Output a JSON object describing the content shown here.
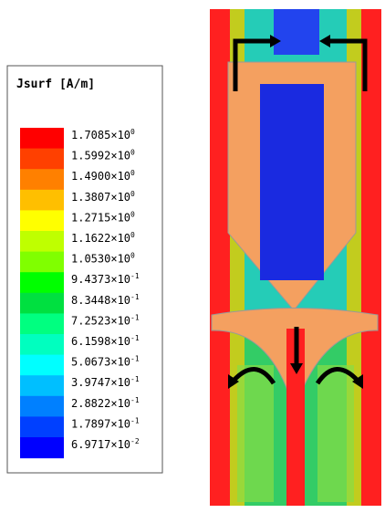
{
  "legend": {
    "title": "Jsurf [A/m]",
    "items": [
      {
        "mantissa": "1.7085×10",
        "exponent": "0",
        "color": "#ff0000"
      },
      {
        "mantissa": "1.5992×10",
        "exponent": "0",
        "color": "#ff4000"
      },
      {
        "mantissa": "1.4900×10",
        "exponent": "0",
        "color": "#ff8000"
      },
      {
        "mantissa": "1.3807×10",
        "exponent": "0",
        "color": "#ffbf00"
      },
      {
        "mantissa": "1.2715×10",
        "exponent": "0",
        "color": "#ffff00"
      },
      {
        "mantissa": "1.1622×10",
        "exponent": "0",
        "color": "#bfff00"
      },
      {
        "mantissa": "1.0530×10",
        "exponent": "0",
        "color": "#80ff00"
      },
      {
        "mantissa": "9.4373×10",
        "exponent": "-1",
        "color": "#00ff00"
      },
      {
        "mantissa": "8.3448×10",
        "exponent": "-1",
        "color": "#00e040"
      },
      {
        "mantissa": "7.2523×10",
        "exponent": "-1",
        "color": "#00ff80"
      },
      {
        "mantissa": "6.1598×10",
        "exponent": "-1",
        "color": "#00ffbf"
      },
      {
        "mantissa": "5.0673×10",
        "exponent": "-1",
        "color": "#00ffff"
      },
      {
        "mantissa": "3.9747×10",
        "exponent": "-1",
        "color": "#00bfff"
      },
      {
        "mantissa": "2.8822×10",
        "exponent": "-1",
        "color": "#0080ff"
      },
      {
        "mantissa": "1.7897×10",
        "exponent": "-1",
        "color": "#0040ff"
      },
      {
        "mantissa": "6.9717×10",
        "exponent": "-2",
        "color": "#0000ff"
      }
    ]
  }
}
